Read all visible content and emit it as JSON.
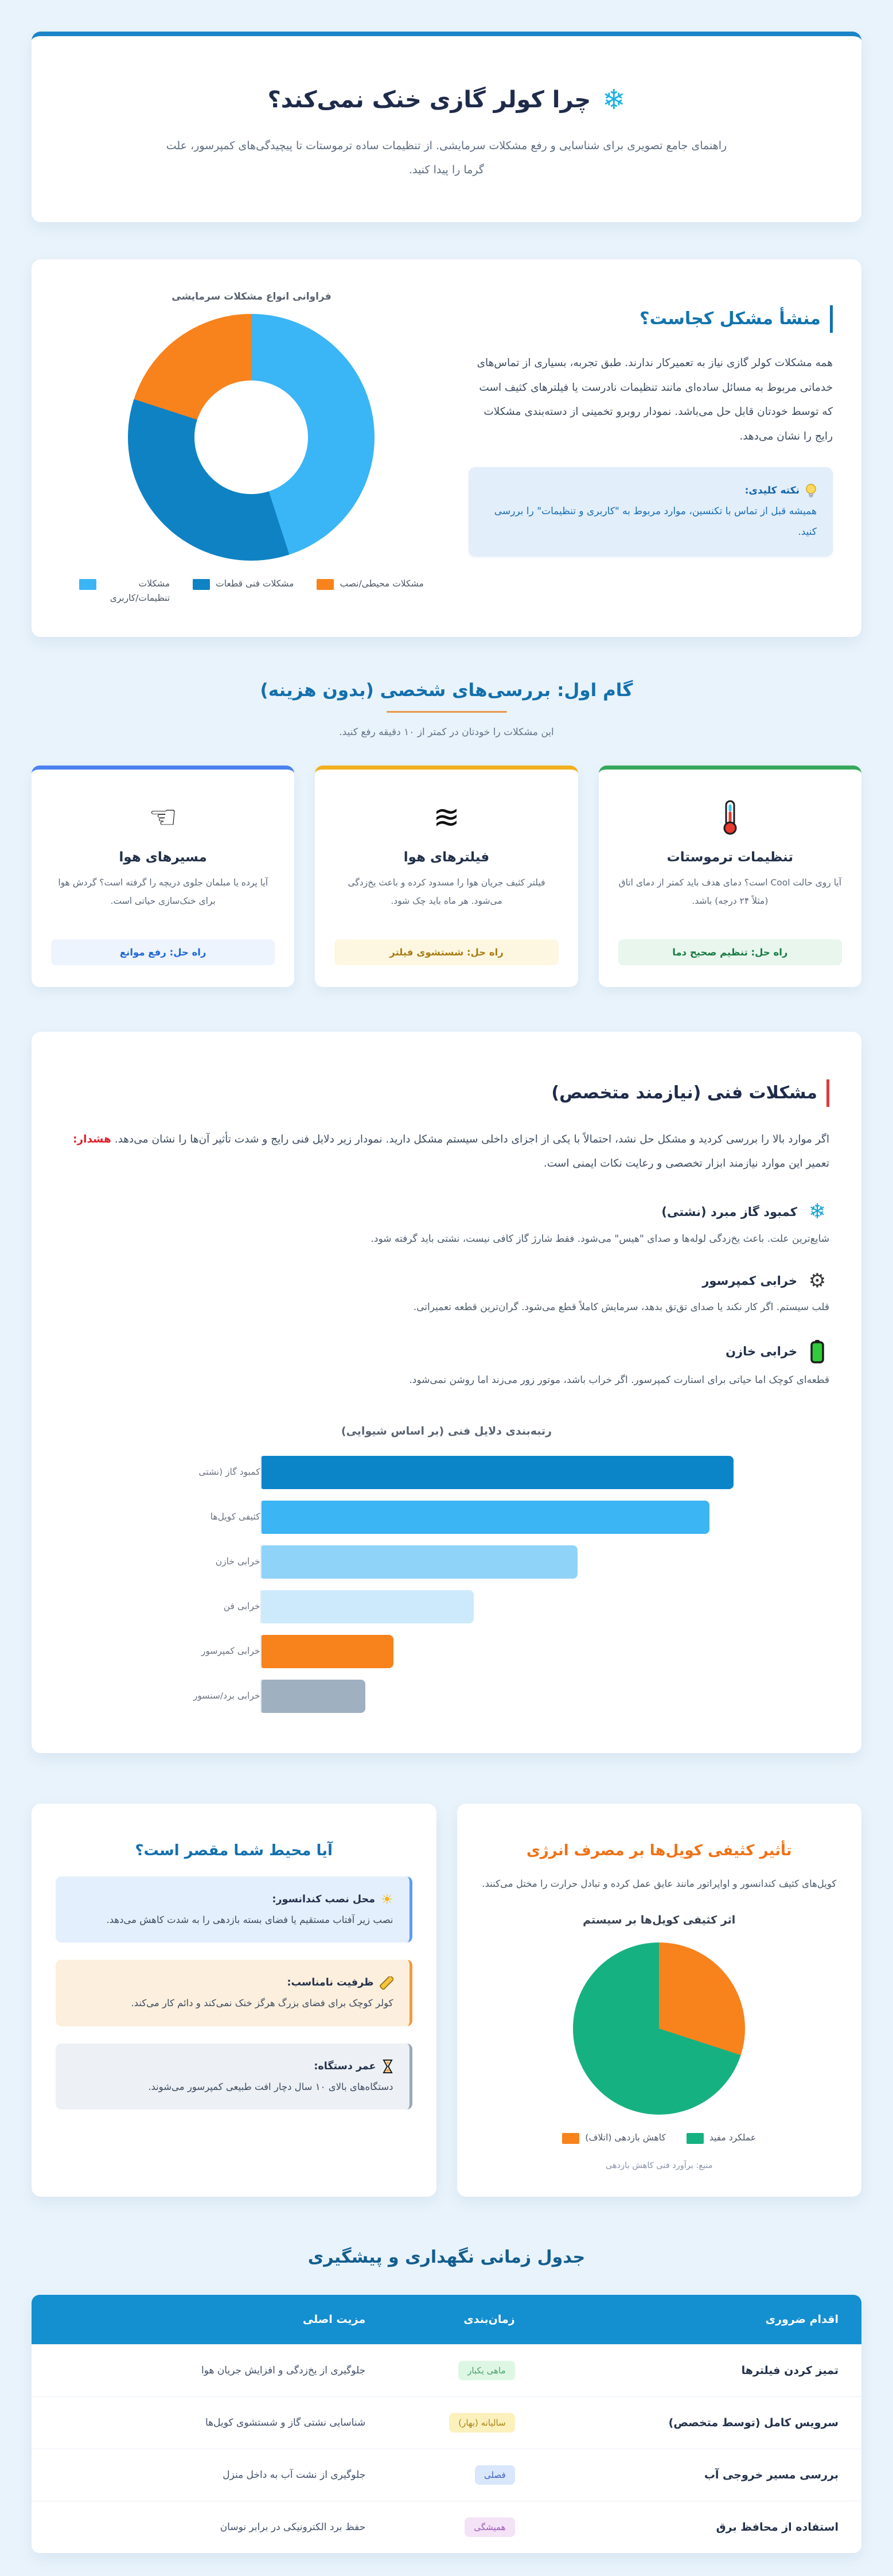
{
  "colors": {
    "page_bg": "#e9f3fb",
    "primary_blue": "#1a84c7",
    "heading_blue": "#1273ae",
    "navy": "#1f2b4a",
    "red": "#e23b3b",
    "accent_orange": "#e8984d",
    "table_head_bg": "#148fd0"
  },
  "header": {
    "icon": "❄",
    "title": "چرا کولر گازی خنک نمی‌کند؟",
    "subtitle": "راهنمای جامع تصویری برای شناسایی و رفع مشکلات سرمایشی. از تنظیمات ساده ترموستات تا پیچیدگی‌های کمپرسور، علت گرما را پیدا کنید."
  },
  "origin": {
    "heading": "منشأ مشکل کجاست؟",
    "paragraph": "همه مشکلات کولر گازی نیاز به تعمیرکار ندارند. طبق تجربه، بسیاری از تماس‌های خدماتی مربوط به مسائل ساده‌ای مانند تنظیمات نادرست یا فیلترهای کثیف است که توسط خودتان قابل حل می‌باشد. نمودار روبرو تخمینی از دسته‌بندی مشکلات رایج را نشان می‌دهد.",
    "tip_title": "نکته کلیدی:",
    "tip_text": "همیشه قبل از تماس با تکنسین، موارد مربوط به \"کاربری و تنظیمات\" را بررسی کنید."
  },
  "chart_data": [
    {
      "type": "doughnut",
      "title": "فراوانی انواع مشکلات سرمایشی",
      "labels": [
        "مشکلات تنظیمات/کاربری",
        "مشکلات فنی قطعات",
        "مشکلات محیطی/نصب"
      ],
      "values": [
        45,
        35,
        20
      ],
      "colors": [
        "#3ab5f5",
        "#0f82c4",
        "#f8821c"
      ],
      "legend_position": "bottom"
    },
    {
      "type": "bar",
      "orientation": "horizontal",
      "title": "رتبه‌بندی دلایل فنی (بر اساس شیوایی)",
      "categories": [
        "کمبود گاز (نشتی",
        "کثیفی کویل‌ها",
        "خرابی خازن",
        "خرابی فن",
        "خرابی کمپرسور",
        "خرابی برد/سنسور"
      ],
      "values": [
        100,
        95,
        67,
        45,
        28,
        22
      ],
      "colors": [
        "#0c84c8",
        "#3bb5f4",
        "#8fd3f8",
        "#cdeafc",
        "#f8821c",
        "#9fb0c1"
      ],
      "xlim": [
        0,
        100
      ],
      "grid": false
    },
    {
      "type": "pie",
      "title": "اثر کثیفی کویل‌ها بر سیستم",
      "slices": [
        {
          "label": "کاهش بازدهی (اتلاف)",
          "value": 30,
          "color": "#f8821c"
        },
        {
          "label": "عملکرد مفید",
          "value": 70,
          "color": "#16b181"
        }
      ],
      "source": "منبع: برآورد فنی کاهش بازدهی"
    }
  ],
  "step_one": {
    "heading": "گام اول: بررسی‌های شخصی (بدون هزینه)",
    "subtitle": "این مشکلات را خودتان در کمتر از ۱۰ دقیقه رفع کنید.",
    "cards": [
      {
        "icon": "thermometer",
        "title": "تنظیمات ترموستات",
        "body": "آیا روی حالت Cool است؟ دمای هدف باید کمتر از دمای اتاق (مثلاً ۲۴ درجه) باشد.",
        "solution": "راه حل: تنظیم صحیح دما",
        "accent": "#35a85b",
        "pill_bg": "#e8f6ee",
        "pill_color": "#187a43"
      },
      {
        "icon": "waves",
        "title": "فیلترهای هوا",
        "body": "فیلتر کثیف جریان هوا را مسدود کرده و باعث یخ‌زدگی می‌شود. هر ماه باید چک شود.",
        "solution": "راه حل: شستشوی فیلتر",
        "accent": "#f2b01e",
        "pill_bg": "#fdf7e1",
        "pill_color": "#a97c14"
      },
      {
        "icon": "hand-left",
        "title": "مسیرهای هوا",
        "body": "آیا پرده یا مبلمان جلوی دریچه را گرفته است؟ گردش هوا برای خنک‌سازی حیاتی است.",
        "solution": "راه حل: رفع موانع",
        "accent": "#4c82ef",
        "pill_bg": "#edf4fd",
        "pill_color": "#1c66d8"
      }
    ]
  },
  "technical": {
    "heading": "مشکلات فنی (نیازمند متخصص)",
    "para_1": "اگر موارد بالا را بررسی کردید و مشکل حل نشد، احتمالاً با یکی از اجزای داخلی سیستم مشکل دارید. نمودار زیر دلایل فنی رایج و شدت تأثیر آن‌ها را نشان می‌دهد. ",
    "warning_label": "هشدار:",
    "para_2": " تعمیر این موارد نیازمند ابزار تخصصی و رعایت نکات ایمنی است.",
    "items": [
      {
        "icon": "snowflake",
        "title": "کمبود گاز مبرد (نشتی)",
        "desc": "شایع‌ترین علت. باعث یخ‌زدگی لوله‌ها و صدای \"هیس\" می‌شود. فقط شارژ گاز کافی نیست، نشتی باید گرفته شود."
      },
      {
        "icon": "gear",
        "title": "خرابی کمپرسور",
        "desc": "قلب سیستم. اگر کار نکند یا صدای تق‌تق بدهد، سرمایش کاملاً قطع می‌شود. گران‌ترین قطعه تعمیراتی."
      },
      {
        "icon": "battery",
        "title": "خرابی خازن",
        "desc": "قطعه‌ای کوچک اما حیاتی برای استارت کمپرسور. اگر خراب باشد، موتور زور می‌زند اما روشن نمی‌شود."
      }
    ]
  },
  "environment": {
    "heading": "آیا محیط شما مقصر است؟",
    "boxes": [
      {
        "icon": "sun",
        "title": "محل نصب کندانسور:",
        "body": "نصب زیر آفتاب مستقیم یا فضای بسته بازدهی را به شدت کاهش می‌دهد.",
        "bg": "#e3effc",
        "border": "#5b9cf5"
      },
      {
        "icon": "ruler",
        "title": "ظرفیت نامناسب:",
        "body": "کولر کوچک برای فضای بزرگ هرگز خنک نمی‌کند و دائم کار می‌کند.",
        "bg": "#fdefdd",
        "border": "#f59a3d"
      },
      {
        "icon": "hourglass",
        "title": "عمر دستگاه:",
        "body": "دستگاه‌های بالای ۱۰ سال دچار افت طبیعی کمپرسور می‌شوند.",
        "bg": "#edf0f4",
        "border": "#9aa8ba"
      }
    ]
  },
  "coils": {
    "heading": "تأثیر کثیفی کویل‌ها بر مصرف انرژی",
    "paragraph": "کویل‌های کثیف کندانسور و اواپراتور مانند عایق عمل کرده و تبادل حرارت را مختل می‌کنند."
  },
  "maintenance": {
    "heading": "جدول زمانی نگهداری و پیشگیری",
    "columns": [
      "اقدام ضروری",
      "زمان‌بندی",
      "مزیت اصلی"
    ],
    "rows": [
      {
        "action": "تمیز کردن فیلترها",
        "badge": {
          "text": "ماهی یکبار",
          "bg": "#def7e4",
          "color": "#4ca06b"
        },
        "benefit": "جلوگیری از یخ‌زدگی و افزایش جریان هوا"
      },
      {
        "action": "سرویس کامل (توسط متخصص)",
        "badge": {
          "text": "سالیانه (بهار)",
          "bg": "#fcf0bd",
          "color": "#a98416"
        },
        "benefit": "شناسایی نشتی گاز و شستشوی کویل‌ها"
      },
      {
        "action": "بررسی مسیر خروجی آب",
        "badge": {
          "text": "فصلی",
          "bg": "#d9e7fc",
          "color": "#4160c9"
        },
        "benefit": "جلوگیری از نشت آب به داخل منزل"
      },
      {
        "action": "استفاده از محافظ برق",
        "badge": {
          "text": "همیشگی",
          "bg": "#f4e2f6",
          "color": "#9b59b6"
        },
        "benefit": "حفظ برد الکترونیکی در برابر نوسان"
      }
    ]
  }
}
